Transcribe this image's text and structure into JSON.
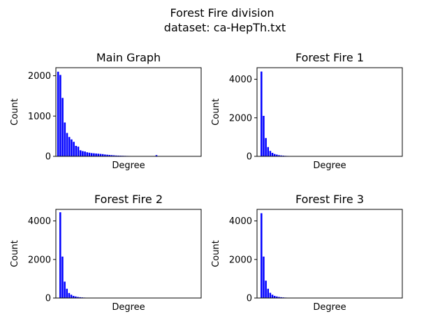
{
  "figure": {
    "title_line1": "Forest Fire division",
    "title_line2": "dataset: ca-HepTh.txt"
  },
  "colors": {
    "bars": "#0000ff",
    "axes": "#000000",
    "background": "#ffffff"
  },
  "chart_data": [
    {
      "type": "bar",
      "title": "Main Graph",
      "xlabel": "Degree",
      "ylabel": "Count",
      "ylim": [
        0,
        2200
      ],
      "yticks": [
        "0",
        "1000",
        "2000"
      ],
      "ytick_values": [
        0,
        1000,
        2000
      ],
      "grid": false,
      "x": [
        1,
        2,
        3,
        4,
        5,
        6,
        7,
        8,
        9,
        10,
        11,
        12,
        13,
        14,
        15,
        16,
        17,
        18,
        19,
        20,
        21,
        22,
        23,
        24,
        25,
        26,
        27,
        28,
        29,
        30,
        31,
        32,
        33,
        34,
        35,
        36,
        37,
        38,
        39,
        40,
        45,
        50
      ],
      "xlim": [
        0,
        65
      ],
      "values": [
        2100,
        2020,
        1450,
        840,
        580,
        480,
        420,
        360,
        260,
        240,
        150,
        130,
        120,
        100,
        90,
        80,
        75,
        70,
        65,
        60,
        55,
        45,
        40,
        35,
        30,
        25,
        20,
        18,
        16,
        14,
        12,
        10,
        9,
        8,
        7,
        6,
        5,
        5,
        4,
        4,
        30,
        3
      ]
    },
    {
      "type": "bar",
      "title": "Forest Fire 1",
      "xlabel": "Degree",
      "ylabel": "Count",
      "ylim": [
        0,
        4600
      ],
      "yticks": [
        "0",
        "2000",
        "4000"
      ],
      "ytick_values": [
        0,
        2000,
        4000
      ],
      "grid": false,
      "x": [
        1,
        2,
        3,
        4,
        5,
        6,
        7,
        8,
        9,
        10,
        11,
        12,
        13,
        14,
        15,
        16,
        17,
        18,
        19,
        20
      ],
      "xlim": [
        -1,
        65
      ],
      "values": [
        4400,
        2100,
        950,
        480,
        280,
        180,
        120,
        90,
        60,
        45,
        35,
        25,
        20,
        15,
        12,
        10,
        8,
        6,
        5,
        4
      ]
    },
    {
      "type": "bar",
      "title": "Forest Fire 2",
      "xlabel": "Degree",
      "ylabel": "Count",
      "ylim": [
        0,
        4600
      ],
      "yticks": [
        "0",
        "2000",
        "4000"
      ],
      "ytick_values": [
        0,
        2000,
        4000
      ],
      "grid": false,
      "x": [
        1,
        2,
        3,
        4,
        5,
        6,
        7,
        8,
        9,
        10,
        11,
        12,
        13,
        14,
        15,
        16,
        17,
        18,
        19,
        20
      ],
      "xlim": [
        -1,
        65
      ],
      "values": [
        4450,
        2150,
        850,
        480,
        260,
        170,
        110,
        80,
        55,
        40,
        30,
        22,
        18,
        14,
        10,
        8,
        6,
        5,
        4,
        3
      ]
    },
    {
      "type": "bar",
      "title": "Forest Fire 3",
      "xlabel": "Degree",
      "ylabel": "Count",
      "ylim": [
        0,
        4600
      ],
      "yticks": [
        "0",
        "2000",
        "4000"
      ],
      "ytick_values": [
        0,
        2000,
        4000
      ],
      "grid": false,
      "x": [
        1,
        2,
        3,
        4,
        5,
        6,
        7,
        8,
        9,
        10,
        11,
        12,
        13,
        14,
        15,
        16,
        17,
        18,
        19,
        20
      ],
      "xlim": [
        -1,
        65
      ],
      "values": [
        4400,
        2150,
        900,
        480,
        270,
        170,
        110,
        80,
        55,
        40,
        30,
        22,
        18,
        14,
        10,
        8,
        6,
        5,
        4,
        3
      ]
    }
  ]
}
